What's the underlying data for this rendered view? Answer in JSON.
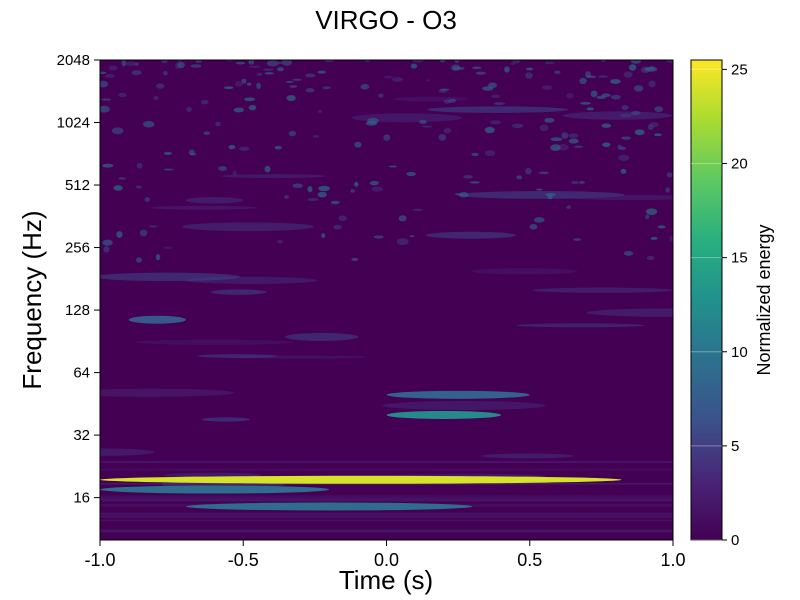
{
  "chart_data": {
    "type": "heatmap",
    "title": "VIRGO - O3",
    "xlabel": "Time (s)",
    "ylabel": "Frequency (Hz)",
    "xlim": [
      -1.0,
      1.0
    ],
    "ylim": [
      10,
      2048
    ],
    "y_scale": "log2",
    "x_ticks": [
      -1.0,
      -0.5,
      0.0,
      0.5,
      1.0
    ],
    "x_tick_labels": [
      "-1.0",
      "-0.5",
      "0.0",
      "0.5",
      "1.0"
    ],
    "y_ticks": [
      16,
      32,
      64,
      128,
      256,
      512,
      1024,
      2048
    ],
    "y_tick_labels": [
      "16",
      "32",
      "64",
      "128",
      "256",
      "512",
      "1024",
      "2048"
    ],
    "colorbar": {
      "label": "Normalized energy",
      "range": [
        0,
        25.5
      ],
      "ticks": [
        0,
        5,
        10,
        15,
        20,
        25
      ],
      "tick_labels": [
        "0",
        "5",
        "10",
        "15",
        "20",
        "25"
      ],
      "colormap": "viridis"
    },
    "features": [
      {
        "t_start": -1.0,
        "t_end": 0.82,
        "freq_hz": 19.5,
        "energy": 24
      },
      {
        "t_start": -1.0,
        "t_end": -0.2,
        "freq_hz": 17.5,
        "energy": 9
      },
      {
        "t_start": -0.7,
        "t_end": 0.3,
        "freq_hz": 14.5,
        "energy": 9
      },
      {
        "t_start": 0.0,
        "t_end": 0.4,
        "freq_hz": 40,
        "energy": 12
      },
      {
        "t_start": 0.0,
        "t_end": 0.5,
        "freq_hz": 50,
        "energy": 8
      },
      {
        "t_start": -0.9,
        "t_end": -0.7,
        "freq_hz": 115,
        "energy": 7
      }
    ]
  }
}
